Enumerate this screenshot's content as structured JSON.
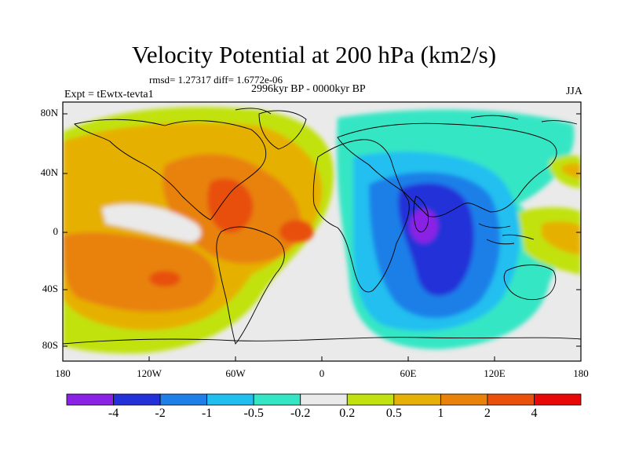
{
  "title": "Velocity Potential at 200 hPa (km2/s)",
  "stats": "rmsd= 1.27317  diff= 1.6772e-06",
  "left_label": "Expt = tEwtx-tevta1",
  "center_label": "2996kyr BP - 0000kyr BP",
  "right_label": "JJA",
  "y_ticks": [
    "80N",
    "40N",
    "0",
    "40S",
    "80S"
  ],
  "x_ticks": [
    "180",
    "120W",
    "60W",
    "0",
    "60E",
    "120E",
    "180"
  ],
  "colorbar": {
    "labels": [
      "-4",
      "-2",
      "-1",
      "-0.5",
      "-0.2",
      "0.2",
      "0.5",
      "1",
      "2",
      "4"
    ],
    "colors": [
      "#8a22e6",
      "#2430d8",
      "#1e7fe8",
      "#20bff0",
      "#35e6c4",
      "#eaeaea",
      "#c1e20e",
      "#e6b006",
      "#e8820a",
      "#e8500c",
      "#e80808"
    ]
  },
  "map": {
    "projection": "cylindrical equidistant",
    "lon_range": [
      -180,
      180
    ],
    "lat_range": [
      -90,
      90
    ]
  }
}
